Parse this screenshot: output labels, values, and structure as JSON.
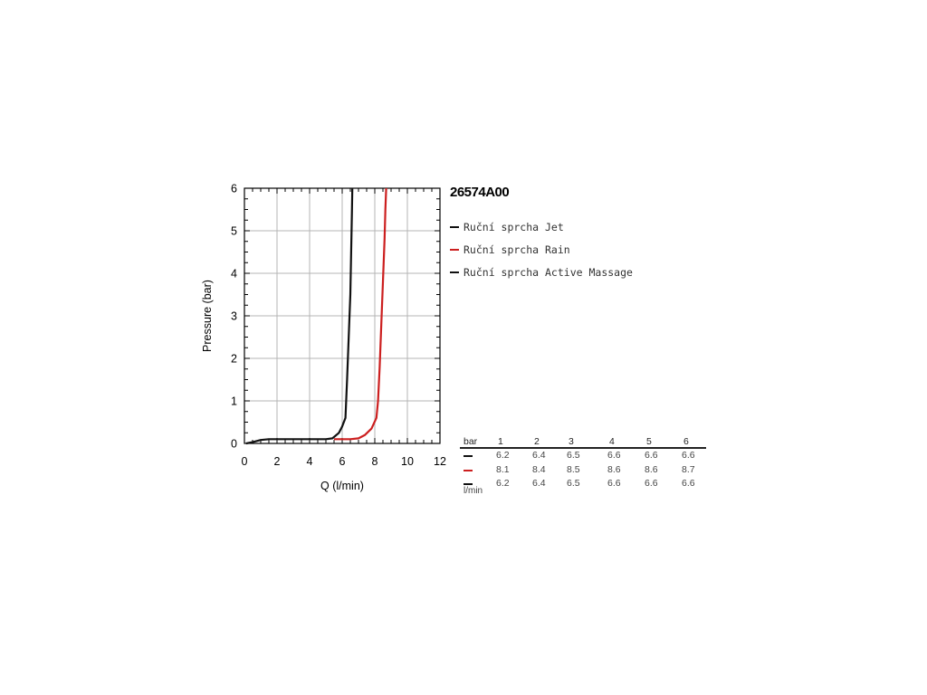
{
  "product_code": "26574A00",
  "legend": [
    {
      "label": "Ruční sprcha Jet",
      "color": "#111111"
    },
    {
      "label": "Ruční sprcha Rain",
      "color": "#cc1f1f"
    },
    {
      "label": "Ruční sprcha Active Massage",
      "color": "#111111"
    }
  ],
  "chart_data": {
    "type": "line",
    "title": "",
    "xlabel": "Q (l/min)",
    "ylabel": "Pressure (bar)",
    "xlim": [
      0,
      12
    ],
    "ylim": [
      0,
      6
    ],
    "x_ticks": [
      "0",
      "2",
      "4",
      "6",
      "8",
      "10",
      "12"
    ],
    "y_ticks": [
      "0",
      "1",
      "2",
      "3",
      "4",
      "5",
      "6"
    ],
    "grid": true,
    "series": [
      {
        "name": "Ruční sprcha Jet",
        "color": "#111111",
        "points": [
          [
            0.1,
            0
          ],
          [
            0.5,
            0.03
          ],
          [
            1,
            0.08
          ],
          [
            1.5,
            0.1
          ],
          [
            3,
            0.1
          ],
          [
            5,
            0.1
          ],
          [
            5.4,
            0.12
          ],
          [
            5.8,
            0.25
          ],
          [
            6.0,
            0.4
          ],
          [
            6.2,
            0.6
          ],
          [
            6.3,
            1.5
          ],
          [
            6.4,
            2.5
          ],
          [
            6.5,
            3.5
          ],
          [
            6.55,
            4.5
          ],
          [
            6.6,
            5.5
          ],
          [
            6.62,
            6
          ]
        ]
      },
      {
        "name": "Ruční sprcha Rain",
        "color": "#cc1f1f",
        "points": [
          [
            5.5,
            0.1
          ],
          [
            6.5,
            0.1
          ],
          [
            7.0,
            0.12
          ],
          [
            7.4,
            0.2
          ],
          [
            7.8,
            0.35
          ],
          [
            8.1,
            0.6
          ],
          [
            8.2,
            1.0
          ],
          [
            8.3,
            1.8
          ],
          [
            8.4,
            2.8
          ],
          [
            8.5,
            3.8
          ],
          [
            8.6,
            4.8
          ],
          [
            8.65,
            5.5
          ],
          [
            8.7,
            6
          ]
        ]
      }
    ]
  },
  "table": {
    "header_label": "bar",
    "pressures": [
      "1",
      "2",
      "3",
      "4",
      "5",
      "6"
    ],
    "unit_label": "l/min",
    "rows": [
      {
        "color": "#111111",
        "values": [
          "6.2",
          "6.4",
          "6.5",
          "6.6",
          "6.6",
          "6.6"
        ]
      },
      {
        "color": "#cc1f1f",
        "values": [
          "8.1",
          "8.4",
          "8.5",
          "8.6",
          "8.6",
          "8.7"
        ]
      },
      {
        "color": "#111111",
        "values": [
          "6.2",
          "6.4",
          "6.5",
          "6.6",
          "6.6",
          "6.6"
        ]
      }
    ]
  }
}
